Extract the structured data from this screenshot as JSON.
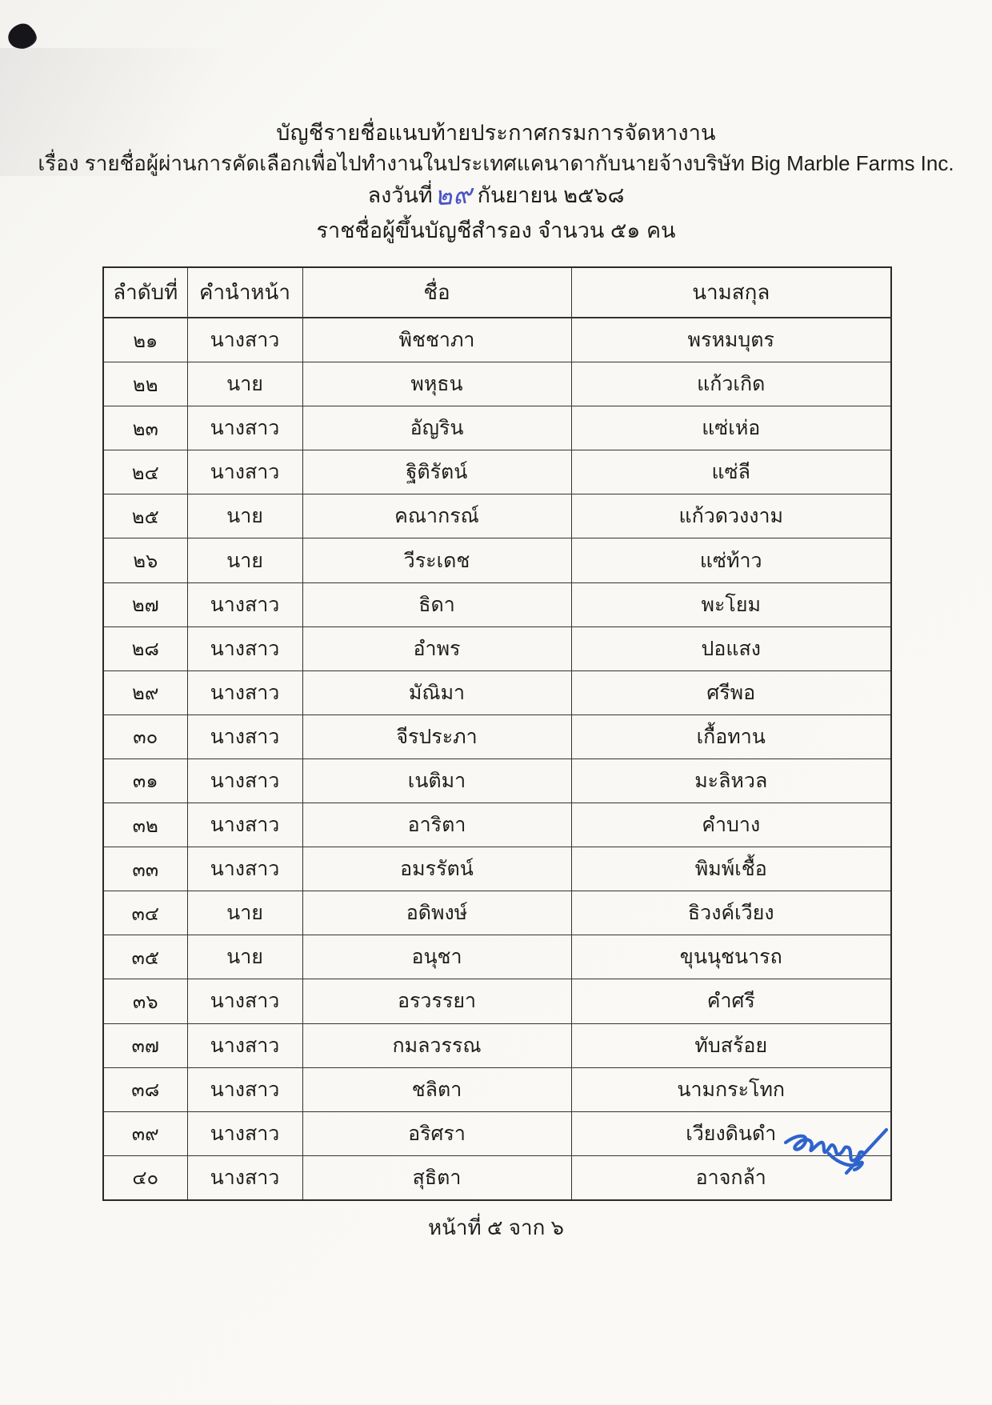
{
  "page": {
    "background": "#f7f6f2",
    "ink_color": "#1e1e1e",
    "handwriting_color": "#4a55c6",
    "signature_color": "#2f63cc"
  },
  "header": {
    "line1": "บัญชีรายชื่อแนบท้ายประกาศกรมการจัดหางาน",
    "line2": "เรื่อง รายชื่อผู้ผ่านการคัดเลือกเพื่อไปทำงานในประเทศแคนาดากับนายจ้างบริษัท Big Marble Farms Inc.",
    "date_prefix": "ลงวันที่",
    "date_handwritten": "๒๙",
    "date_suffix": "กันยายน ๒๕๖๘",
    "subtitle": "ราชชื่อผู้ขึ้นบัญชีสำรอง จำนวน ๕๑ คน"
  },
  "table": {
    "columns": [
      "ลำดับที่",
      "คำนำหน้า",
      "ชื่อ",
      "นามสกุล"
    ],
    "rows": [
      [
        "๒๑",
        "นางสาว",
        "พิชชาภา",
        "พรหมบุตร"
      ],
      [
        "๒๒",
        "นาย",
        "พหุธน",
        "แก้วเกิด"
      ],
      [
        "๒๓",
        "นางสาว",
        "อัญริน",
        "แซ่เห่อ"
      ],
      [
        "๒๔",
        "นางสาว",
        "ฐิติรัตน์",
        "แซ่ลี"
      ],
      [
        "๒๕",
        "นาย",
        "คณากรณ์",
        "แก้วดวงงาม"
      ],
      [
        "๒๖",
        "นาย",
        "วีระเดช",
        "แซ่ท้าว"
      ],
      [
        "๒๗",
        "นางสาว",
        "ธิดา",
        "พะโยม"
      ],
      [
        "๒๘",
        "นางสาว",
        "อำพร",
        "ปอแสง"
      ],
      [
        "๒๙",
        "นางสาว",
        "มัณิมา",
        "ศรีพอ"
      ],
      [
        "๓๐",
        "นางสาว",
        "จีรประภา",
        "เกื้อทาน"
      ],
      [
        "๓๑",
        "นางสาว",
        "เนติมา",
        "มะลิหวล"
      ],
      [
        "๓๒",
        "นางสาว",
        "อาริตา",
        "คำบาง"
      ],
      [
        "๓๓",
        "นางสาว",
        "อมรรัตน์",
        "พิมพ์เชื้อ"
      ],
      [
        "๓๔",
        "นาย",
        "อดิพงษ์",
        "ธิวงค์เวียง"
      ],
      [
        "๓๕",
        "นาย",
        "อนุชา",
        "ขุนนุชนารถ"
      ],
      [
        "๓๖",
        "นางสาว",
        "อรวรรยา",
        "คำศรี"
      ],
      [
        "๓๗",
        "นางสาว",
        "กมลวรรณ",
        "ทับสร้อย"
      ],
      [
        "๓๘",
        "นางสาว",
        "ชลิตา",
        "นามกระโทก"
      ],
      [
        "๓๙",
        "นางสาว",
        "อริศรา",
        "เวียงดินดำ"
      ],
      [
        "๔๐",
        "นางสาว",
        "สุธิตา",
        "อาจกล้า"
      ]
    ]
  },
  "annotations": {
    "signature": "handwritten-signature-blue-ink"
  },
  "footer": {
    "page_label": "หน้าที่ ๕ จาก ๖"
  }
}
